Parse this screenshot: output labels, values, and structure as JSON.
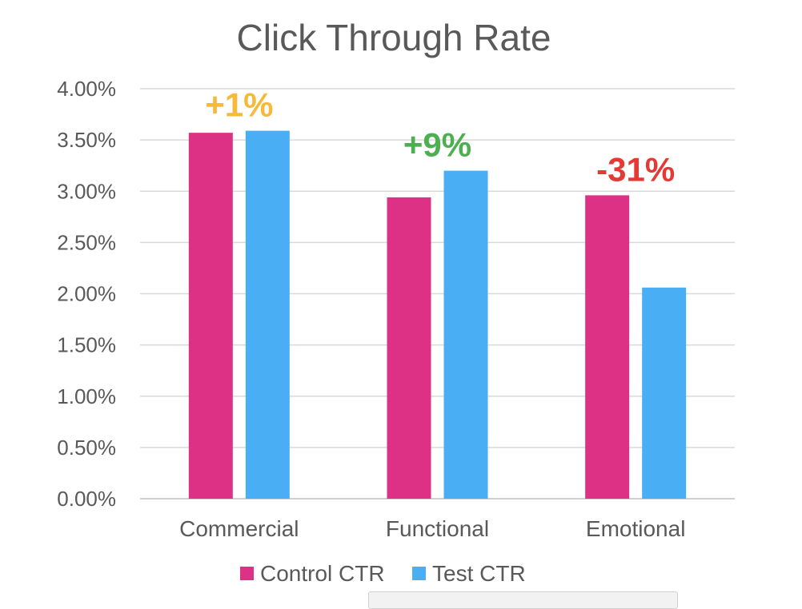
{
  "chart_data": {
    "type": "bar",
    "title": "Click Through Rate",
    "categories": [
      "Commercial",
      "Functional",
      "Emotional"
    ],
    "series": [
      {
        "name": "Control CTR",
        "color": "#dc3184",
        "values": [
          3.57,
          2.94,
          2.96
        ]
      },
      {
        "name": "Test CTR",
        "color": "#4aaef4",
        "values": [
          3.59,
          3.2,
          2.06
        ]
      }
    ],
    "ylim": [
      0,
      4
    ],
    "yticks": [
      0,
      0.5,
      1.0,
      1.5,
      2.0,
      2.5,
      3.0,
      3.5,
      4.0
    ],
    "ytick_labels": [
      "0.00%",
      "0.50%",
      "1.00%",
      "1.50%",
      "2.00%",
      "2.50%",
      "3.00%",
      "3.50%",
      "4.00%"
    ],
    "grid": true,
    "legend_position": "bottom",
    "annotations": [
      {
        "category": "Commercial",
        "text": "+1%",
        "color": "#f5b93b"
      },
      {
        "category": "Functional",
        "text": "+9%",
        "color": "#4caf50"
      },
      {
        "category": "Emotional",
        "text": "-31%",
        "color": "#e53935"
      }
    ]
  }
}
